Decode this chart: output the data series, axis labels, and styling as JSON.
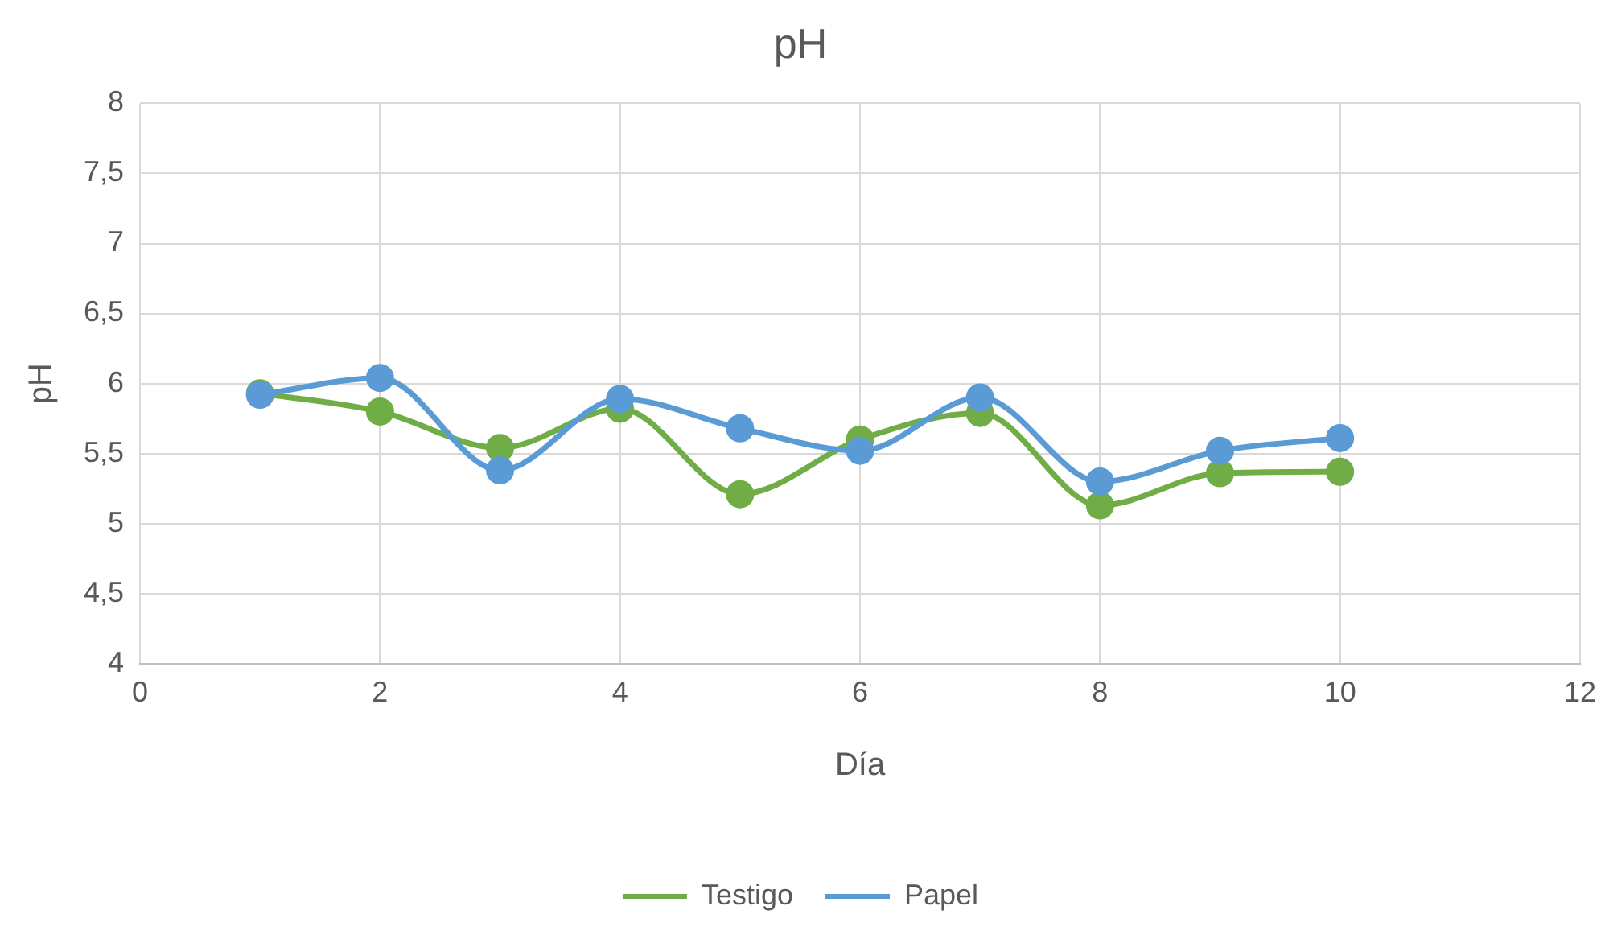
{
  "chart_data": {
    "type": "line",
    "title": "pH",
    "xlabel": "Día",
    "ylabel": "pH",
    "xlim": [
      0,
      12
    ],
    "xticks": [
      0,
      2,
      4,
      6,
      8,
      10,
      12
    ],
    "ylim": [
      4,
      8
    ],
    "yticks": [
      4,
      {
        "value": 4.5,
        "label": "4,5"
      },
      5,
      {
        "value": 5.5,
        "label": "5,5"
      },
      6,
      {
        "value": 6.5,
        "label": "6,5"
      },
      7,
      {
        "value": 7.5,
        "label": "7,5"
      },
      8
    ],
    "x": [
      1,
      2,
      3,
      4,
      5,
      6,
      7,
      8,
      9,
      10
    ],
    "series": [
      {
        "name": "Testigo",
        "color": "#70ad47",
        "values": [
          5.93,
          5.8,
          5.54,
          5.82,
          5.21,
          5.6,
          5.79,
          5.13,
          5.36,
          5.37
        ]
      },
      {
        "name": "Papel",
        "color": "#5b9bd5",
        "values": [
          5.92,
          6.04,
          5.38,
          5.89,
          5.68,
          5.52,
          5.9,
          5.3,
          5.52,
          5.61
        ]
      }
    ],
    "grid": true,
    "legend": "bottom",
    "marker": "circle",
    "line_style": "solid"
  }
}
